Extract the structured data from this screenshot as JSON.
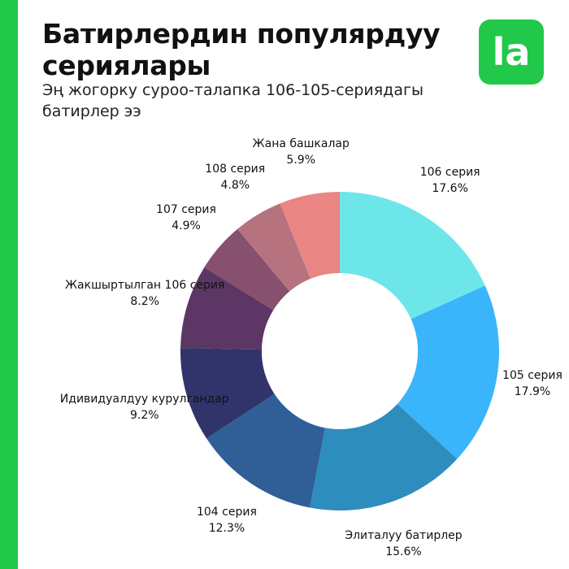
{
  "header": {
    "title": "Батирлердин популярдуу сериялары",
    "subtitle": "Эң жогорку суроо-талапка 106-105-сериядагы батирлер ээ"
  },
  "brand": {
    "logo_text": "la",
    "accent_color": "#22c84a"
  },
  "chart_data": {
    "type": "pie",
    "variant": "donut",
    "title": "Батирлердин популярдуу сериялары",
    "subtitle": "Эң жогорку суроо-талапка 106-105-сериядагы батирлер ээ",
    "value_suffix": "%",
    "start": "top, clockwise",
    "slices": [
      {
        "label": "106 серия",
        "value": 17.6,
        "display": "17.6%",
        "color": "#6de6ea"
      },
      {
        "label": "105 серия",
        "value": 17.9,
        "display": "17.9%",
        "color": "#3ab4fb"
      },
      {
        "label": "Элиталуу батирлер",
        "value": 15.6,
        "display": "15.6%",
        "color": "#2d8dbd"
      },
      {
        "label": "104 серия",
        "value": 12.3,
        "display": "12.3%",
        "color": "#305f98"
      },
      {
        "label": "Идивидуалдуу курулгандар",
        "value": 9.2,
        "display": "9.2%",
        "color": "#30346b"
      },
      {
        "label": "Жакшыртылган 106 серия",
        "value": 8.2,
        "display": "8.2%",
        "color": "#5c3765"
      },
      {
        "label": "107 серия",
        "value": 4.9,
        "display": "4.9%",
        "color": "#87506f"
      },
      {
        "label": "108 серия",
        "value": 4.8,
        "display": "4.8%",
        "color": "#b77280"
      },
      {
        "label": "Жана башкалар",
        "value": 5.9,
        "display": "5.9%",
        "color": "#e98583"
      }
    ]
  }
}
